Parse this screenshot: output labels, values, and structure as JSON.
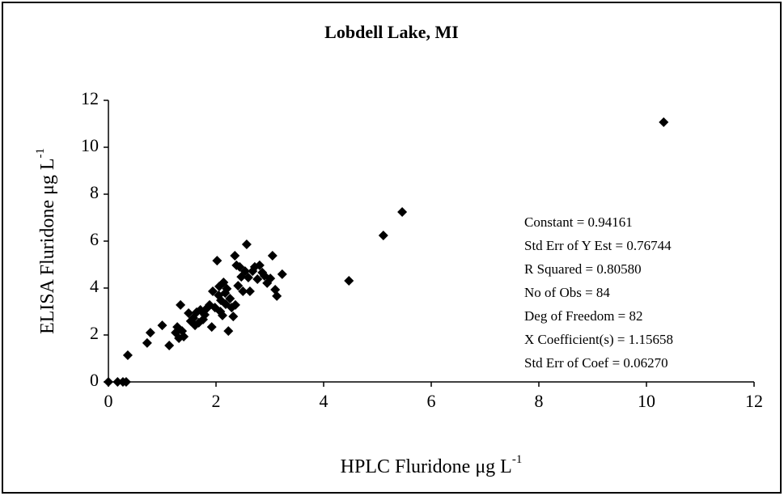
{
  "chart_data": {
    "type": "scatter",
    "title": "Lobdell Lake, MI",
    "xlabel": "HPLC Fluridone μg L",
    "xlabel_sup": "-1",
    "ylabel": "ELISA Fluridone μg L",
    "ylabel_sup": "-1",
    "color": "#000000",
    "xlim": [
      0,
      12
    ],
    "xticks": [
      0,
      2,
      4,
      6,
      8,
      10,
      12
    ],
    "ylim": [
      0,
      12
    ],
    "yticks": [
      0,
      2,
      4,
      6,
      8,
      10,
      12
    ],
    "annotations": [
      "Constant = 0.94161",
      "Std Err of Y Est = 0.76744",
      "R Squared = 0.80580",
      "No of Obs = 84",
      "Deg of Freedom = 82",
      "X Coefficient(s) = 1.15658",
      "Std Err of Coef = 0.06270"
    ],
    "x": [
      0,
      0.17,
      0.27,
      0.33,
      0.36,
      0.72,
      0.78,
      1.0,
      1.13,
      1.25,
      1.28,
      1.31,
      1.34,
      1.37,
      1.4,
      1.49,
      1.53,
      1.58,
      1.61,
      1.64,
      1.68,
      1.71,
      1.76,
      1.79,
      1.83,
      1.88,
      1.92,
      1.94,
      1.98,
      2.02,
      2.05,
      2.06,
      2.08,
      2.09,
      2.12,
      2.14,
      2.17,
      2.18,
      2.2,
      2.23,
      2.26,
      2.29,
      2.32,
      2.35,
      2.36,
      2.38,
      2.41,
      2.44,
      2.47,
      2.5,
      2.54,
      2.57,
      2.6,
      2.63,
      2.68,
      2.72,
      2.77,
      2.81,
      2.86,
      2.9,
      2.95,
      3.01,
      3.05,
      3.1,
      3.13,
      3.23,
      4.47,
      5.11,
      5.46,
      10.32
    ],
    "values": [
      0,
      0,
      0,
      0,
      1.14,
      1.66,
      2.1,
      2.41,
      1.55,
      2.1,
      2.34,
      1.86,
      3.28,
      2.17,
      1.93,
      2.93,
      2.59,
      2.72,
      2.41,
      2.97,
      2.52,
      3.07,
      2.66,
      2.86,
      3.14,
      3.28,
      2.34,
      3.86,
      3.17,
      5.17,
      3.69,
      4.07,
      3.0,
      3.48,
      2.83,
      4.24,
      3.79,
      3.31,
      3.97,
      2.17,
      3.55,
      3.17,
      2.79,
      5.38,
      3.28,
      4.97,
      4.1,
      4.9,
      4.48,
      3.86,
      4.72,
      5.86,
      4.45,
      3.86,
      4.72,
      4.9,
      4.38,
      4.97,
      4.66,
      4.52,
      4.21,
      4.41,
      5.38,
      3.93,
      3.66,
      4.59,
      4.31,
      6.24,
      7.24,
      11.07
    ]
  }
}
